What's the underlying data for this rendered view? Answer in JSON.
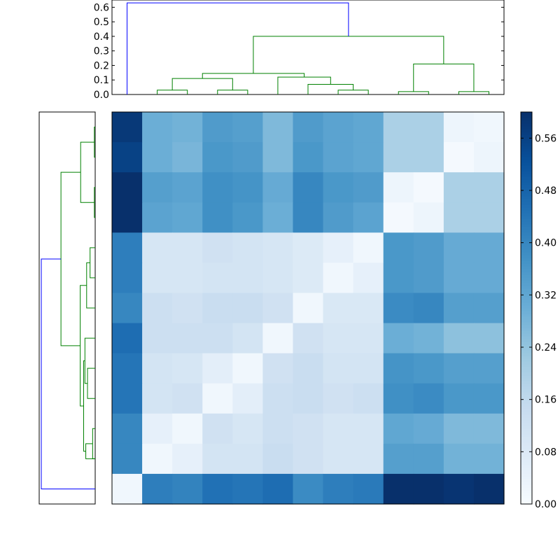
{
  "chart_data": [
    {
      "type": "dendrogram",
      "orientation": "top",
      "ylim": [
        0.0,
        0.65
      ],
      "yticks": [
        "0.0",
        "0.1",
        "0.2",
        "0.3",
        "0.4",
        "0.5",
        "0.6"
      ],
      "leaf_count": 13,
      "links": [
        {
          "a": 2.0,
          "b": 3.0,
          "h": 0.03,
          "ha": 0.0,
          "hb": 0.0,
          "color": "#008000"
        },
        {
          "a": 4.0,
          "b": 5.0,
          "h": 0.03,
          "ha": 0.0,
          "hb": 0.0,
          "color": "#008000"
        },
        {
          "a": 2.5,
          "b": 4.5,
          "h": 0.11,
          "ha": 0.03,
          "hb": 0.03,
          "color": "#008000"
        },
        {
          "a": 8.0,
          "b": 9.0,
          "h": 0.03,
          "ha": 0.0,
          "hb": 0.0,
          "color": "#008000"
        },
        {
          "a": 7.0,
          "b": 8.5,
          "h": 0.07,
          "ha": 0.0,
          "hb": 0.03,
          "color": "#008000"
        },
        {
          "a": 6.0,
          "b": 7.75,
          "h": 0.12,
          "ha": 0.0,
          "hb": 0.07,
          "color": "#008000"
        },
        {
          "a": 3.5,
          "b": 6.875,
          "h": 0.145,
          "ha": 0.11,
          "hb": 0.12,
          "color": "#008000"
        },
        {
          "a": 10.0,
          "b": 11.0,
          "h": 0.02,
          "ha": 0.0,
          "hb": 0.0,
          "color": "#008000"
        },
        {
          "a": 12.0,
          "b": 13.0,
          "h": 0.02,
          "ha": 0.0,
          "hb": 0.0,
          "color": "#008000"
        },
        {
          "a": 10.5,
          "b": 12.5,
          "h": 0.21,
          "ha": 0.02,
          "hb": 0.02,
          "color": "#008000"
        },
        {
          "a": 5.1875,
          "b": 11.5,
          "h": 0.4,
          "ha": 0.145,
          "hb": 0.21,
          "color": "#008000"
        },
        {
          "a": 1.0,
          "b": 8.34375,
          "h": 0.63,
          "ha": 0.0,
          "hb": 0.4,
          "color": "#0000ff"
        }
      ]
    },
    {
      "type": "dendrogram",
      "orientation": "left",
      "leaf_count": 13,
      "links": [
        {
          "a": 1.0,
          "b": 2.0,
          "h": 0.01,
          "ha": 0.0,
          "hb": 0.0,
          "color": "#008000"
        },
        {
          "a": 3.0,
          "b": 4.0,
          "h": 0.01,
          "ha": 0.0,
          "hb": 0.0,
          "color": "#008000"
        },
        {
          "a": 1.5,
          "b": 3.5,
          "h": 0.17,
          "ha": 0.01,
          "hb": 0.01,
          "color": "#008000"
        },
        {
          "a": 5.0,
          "b": 6.0,
          "h": 0.06,
          "ha": 0.0,
          "hb": 0.0,
          "color": "#008000"
        },
        {
          "a": 5.5,
          "b": 7.0,
          "h": 0.1,
          "ha": 0.06,
          "hb": 0.0,
          "color": "#008000"
        },
        {
          "a": 9.0,
          "b": 10.0,
          "h": 0.09,
          "ha": 0.0,
          "hb": 0.0,
          "color": "#008000"
        },
        {
          "a": 8.0,
          "b": 9.5,
          "h": 0.12,
          "ha": 0.0,
          "hb": 0.09,
          "color": "#008000"
        },
        {
          "a": 11.0,
          "b": 12.0,
          "h": 0.03,
          "ha": 0.0,
          "hb": 0.0,
          "color": "#008000"
        },
        {
          "a": 11.5,
          "b": 12.0,
          "h": 0.11,
          "ha": 0.03,
          "hb": 0.0,
          "color": "#008000"
        },
        {
          "a": 8.75,
          "b": 11.75,
          "h": 0.135,
          "ha": 0.12,
          "hb": 0.11,
          "color": "#008000"
        },
        {
          "a": 6.25,
          "b": 10.25,
          "h": 0.175,
          "ha": 0.1,
          "hb": 0.135,
          "color": "#008000"
        },
        {
          "a": 2.5,
          "b": 8.25,
          "h": 0.4,
          "ha": 0.17,
          "hb": 0.175,
          "color": "#008000"
        },
        {
          "a": 5.375,
          "b": 13.0,
          "h": 0.63,
          "ha": 0.4,
          "hb": 0.0,
          "color": "#0000ff"
        }
      ]
    },
    {
      "type": "heatmap",
      "colormap": "Blues",
      "vmin": 0.0,
      "vmax": 0.6,
      "matrix": [
        [
          0.58,
          0.3,
          0.29,
          0.35,
          0.34,
          0.27,
          0.35,
          0.33,
          0.32,
          0.2,
          0.2,
          0.03,
          0.02
        ],
        [
          0.56,
          0.3,
          0.28,
          0.36,
          0.35,
          0.27,
          0.36,
          0.33,
          0.32,
          0.2,
          0.2,
          0.01,
          0.03
        ],
        [
          0.6,
          0.34,
          0.33,
          0.38,
          0.37,
          0.31,
          0.4,
          0.36,
          0.35,
          0.03,
          0.01,
          0.2,
          0.2
        ],
        [
          0.62,
          0.33,
          0.32,
          0.38,
          0.36,
          0.3,
          0.4,
          0.35,
          0.33,
          0.01,
          0.03,
          0.2,
          0.2
        ],
        [
          0.42,
          0.1,
          0.1,
          0.12,
          0.11,
          0.1,
          0.08,
          0.05,
          0.02,
          0.36,
          0.35,
          0.31,
          0.31
        ],
        [
          0.42,
          0.1,
          0.1,
          0.11,
          0.11,
          0.1,
          0.08,
          0.02,
          0.05,
          0.36,
          0.35,
          0.31,
          0.31
        ],
        [
          0.4,
          0.13,
          0.12,
          0.14,
          0.14,
          0.12,
          0.02,
          0.09,
          0.09,
          0.39,
          0.4,
          0.34,
          0.34
        ],
        [
          0.46,
          0.13,
          0.13,
          0.13,
          0.11,
          0.02,
          0.12,
          0.1,
          0.1,
          0.3,
          0.29,
          0.25,
          0.25
        ],
        [
          0.44,
          0.11,
          0.1,
          0.06,
          0.02,
          0.12,
          0.14,
          0.11,
          0.11,
          0.37,
          0.36,
          0.34,
          0.34
        ],
        [
          0.44,
          0.11,
          0.12,
          0.02,
          0.06,
          0.13,
          0.14,
          0.12,
          0.13,
          0.38,
          0.39,
          0.36,
          0.36
        ],
        [
          0.4,
          0.05,
          0.02,
          0.12,
          0.1,
          0.13,
          0.12,
          0.1,
          0.1,
          0.32,
          0.31,
          0.27,
          0.27
        ],
        [
          0.4,
          0.02,
          0.05,
          0.11,
          0.11,
          0.14,
          0.12,
          0.1,
          0.1,
          0.34,
          0.34,
          0.29,
          0.29
        ],
        [
          0.02,
          0.42,
          0.41,
          0.45,
          0.44,
          0.46,
          0.39,
          0.42,
          0.43,
          0.63,
          0.63,
          0.59,
          0.6
        ]
      ]
    },
    {
      "type": "colorbar",
      "colormap": "Blues",
      "ylim": [
        0.0,
        0.6
      ],
      "ticks": [
        "0.00",
        "0.08",
        "0.16",
        "0.24",
        "0.32",
        "0.40",
        "0.48",
        "0.56"
      ]
    }
  ]
}
